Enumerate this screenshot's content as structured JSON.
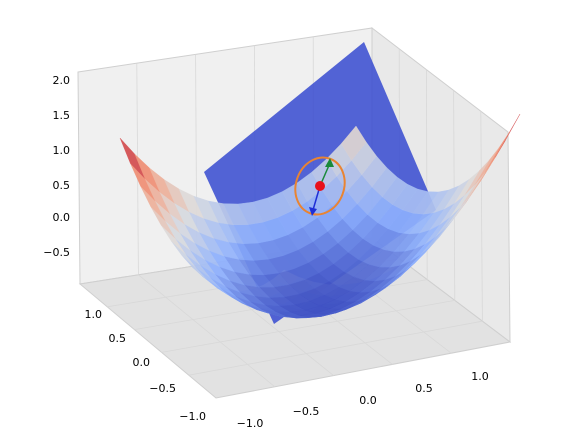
{
  "chart_data": {
    "type": "surface3d",
    "title": "",
    "xlabel": "",
    "ylabel": "",
    "zlabel": "",
    "grid": true,
    "surface": {
      "function": "z = x^2 - 0.5*x*y + y^2 - 0.5",
      "x_range": [
        -1.0,
        1.0
      ],
      "y_range": [
        -1.0,
        1.0
      ],
      "colormap": "coolwarm"
    },
    "tangent_plane": {
      "color": "#3b4fd0",
      "opacity": 0.85
    },
    "point": {
      "label": "",
      "color": "#e8101a"
    },
    "ellipse_color": "#e98432",
    "arrows": [
      {
        "color": "#1a8a3a"
      },
      {
        "color": "#1f2fd6"
      }
    ],
    "x_axis": {
      "ticks": [
        "−1.0",
        "−0.5",
        "0.0",
        "0.5",
        "1.0"
      ],
      "values": [
        -1.0,
        -0.5,
        0.0,
        0.5,
        1.0
      ]
    },
    "y_axis": {
      "ticks": [
        "−1.0",
        "−0.5",
        "0.0",
        "0.5",
        "1.0"
      ],
      "values": [
        -1.0,
        -0.5,
        0.0,
        0.5,
        1.0
      ]
    },
    "z_axis": {
      "ticks": [
        "−0.5",
        "0.0",
        "0.5",
        "1.0",
        "1.5",
        "2.0"
      ],
      "values": [
        -0.5,
        0.0,
        0.5,
        1.0,
        1.5,
        2.0
      ]
    }
  }
}
